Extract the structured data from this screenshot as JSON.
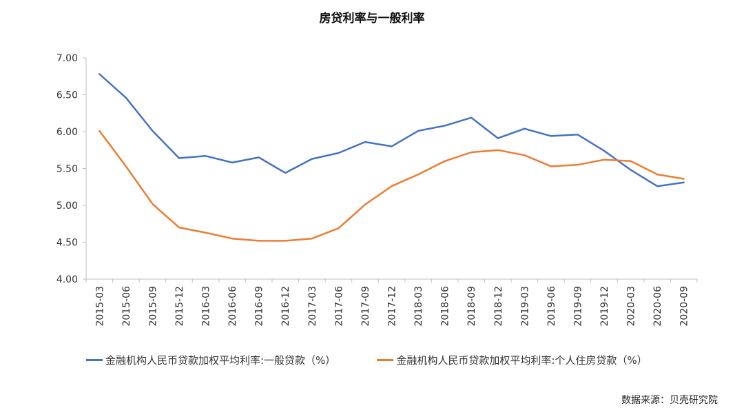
{
  "chart_data": {
    "type": "line",
    "title": "房贷利率与一般利率",
    "categories": [
      "2015-03",
      "2015-06",
      "2015-09",
      "2015-12",
      "2016-03",
      "2016-06",
      "2016-09",
      "2016-12",
      "2017-03",
      "2017-06",
      "2017-09",
      "2017-12",
      "2018-03",
      "2018-06",
      "2018-09",
      "2018-12",
      "2019-03",
      "2019-06",
      "2019-09",
      "2019-12",
      "2020-03",
      "2020-06",
      "2020-09"
    ],
    "series": [
      {
        "name": "金融机构人民币贷款加权平均利率:一般贷款（%）",
        "color": "#4472C4",
        "values": [
          6.78,
          6.46,
          6.01,
          5.64,
          5.67,
          5.58,
          5.65,
          5.44,
          5.63,
          5.71,
          5.86,
          5.8,
          6.01,
          6.08,
          6.19,
          5.91,
          6.04,
          5.94,
          5.96,
          5.74,
          5.48,
          5.26,
          5.31
        ]
      },
      {
        "name": "金融机构人民币贷款加权平均利率:个人住房贷款（%）",
        "color": "#ED7D31",
        "values": [
          6.01,
          5.53,
          5.02,
          4.7,
          4.63,
          4.55,
          4.52,
          4.52,
          4.55,
          4.69,
          5.01,
          5.26,
          5.42,
          5.6,
          5.72,
          5.75,
          5.68,
          5.53,
          5.55,
          5.62,
          5.6,
          5.42,
          5.36
        ]
      }
    ],
    "ylim": [
      4.0,
      7.0
    ],
    "yticks": [
      "4.00",
      "4.50",
      "5.00",
      "5.50",
      "6.00",
      "6.50",
      "7.00"
    ],
    "grid": false,
    "legend_position": "bottom"
  },
  "source": "数据来源：贝壳研究院"
}
